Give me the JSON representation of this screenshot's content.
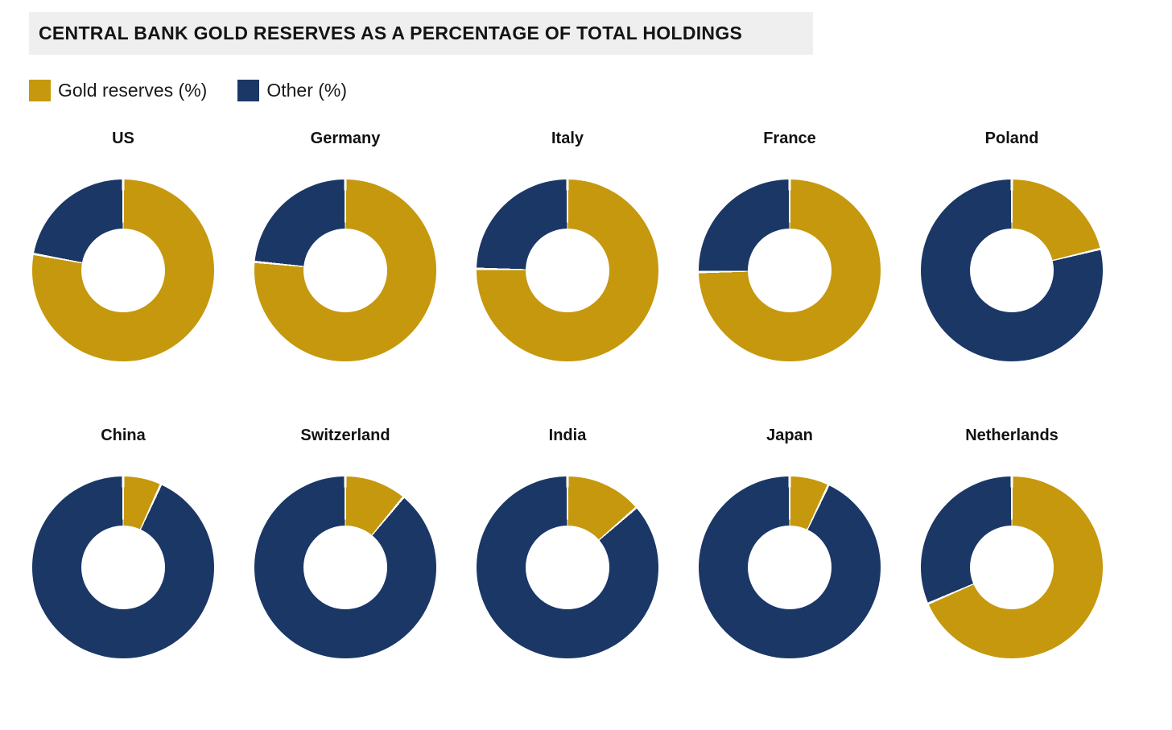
{
  "header": {
    "title": "CENTRAL BANK GOLD RESERVES AS A PERCENTAGE OF TOTAL HOLDINGS"
  },
  "legend": {
    "items": [
      {
        "label": "Gold reserves (%)",
        "color": "#C5980E"
      },
      {
        "label": "Other (%)",
        "color": "#1A3766"
      }
    ]
  },
  "chart_data": {
    "type": "pie",
    "variant": "donut_small_multiples",
    "title": "CENTRAL BANK GOLD RESERVES AS A PERCENTAGE OF TOTAL HOLDINGS",
    "series_labels": [
      "Gold reserves (%)",
      "Other (%)"
    ],
    "colors": {
      "gold": "#C5980E",
      "other": "#1A3766",
      "divider": "#FFFFFF"
    },
    "layout": {
      "rows": 2,
      "columns": 5,
      "start_angle_deg": 0,
      "direction": "clockwise",
      "hole_ratio": 0.46,
      "legend_position": "top-left"
    },
    "donuts": [
      {
        "country": "US",
        "gold_pct": 77.9,
        "other_pct": 22.1
      },
      {
        "country": "Germany",
        "gold_pct": 76.5,
        "other_pct": 23.5
      },
      {
        "country": "Italy",
        "gold_pct": 75.3,
        "other_pct": 24.7
      },
      {
        "country": "France",
        "gold_pct": 74.7,
        "other_pct": 25.3
      },
      {
        "country": "Poland",
        "gold_pct": 21.2,
        "other_pct": 78.8
      },
      {
        "country": "China",
        "gold_pct": 6.8,
        "other_pct": 93.2
      },
      {
        "country": "Switzerland",
        "gold_pct": 11.0,
        "other_pct": 89.0
      },
      {
        "country": "India",
        "gold_pct": 13.6,
        "other_pct": 86.4
      },
      {
        "country": "Japan",
        "gold_pct": 7.0,
        "other_pct": 93.0
      },
      {
        "country": "Netherlands",
        "gold_pct": 68.5,
        "other_pct": 31.5
      }
    ]
  }
}
